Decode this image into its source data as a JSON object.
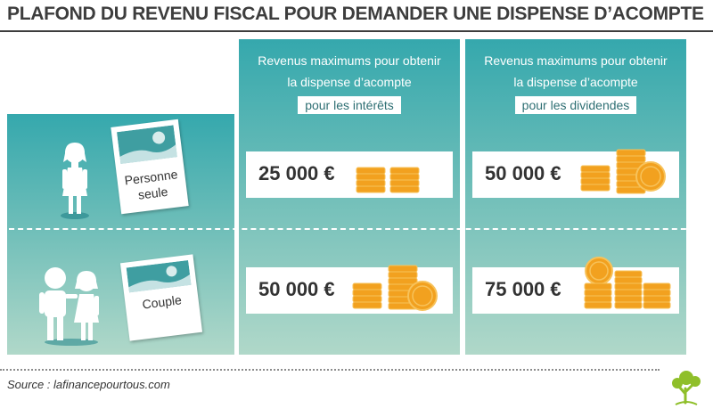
{
  "title": "PLAFOND DU REVENU FISCAL POUR DEMANDER UNE DISPENSE D’ACOMPTE",
  "columns": [
    {
      "line1": "Revenus maximums pour obtenir",
      "line2": "la dispense d’acompte",
      "tag": "pour les intérêts"
    },
    {
      "line1": "Revenus maximums pour obtenir",
      "line2": "la dispense d’acompte",
      "tag": "pour les dividendes"
    }
  ],
  "rows": [
    {
      "label_line1": "Personne",
      "label_line2": "seule",
      "interets": "25 000 €",
      "dividendes": "50 000 €"
    },
    {
      "label_line1": "Couple",
      "interets": "50 000 €",
      "dividendes": "75 000 €"
    }
  ],
  "source": "Source : lafinancepourtous.com",
  "colors": {
    "teal_top": "#35a8ad",
    "teal_bottom": "#b0d8c9",
    "coin": "#f2a11f",
    "coin_light": "#f7c25a",
    "title": "#3d3d3d",
    "logo_green": "#8fbf2a"
  },
  "icons": [
    "woman-icon",
    "couple-icon",
    "document-icon",
    "coin-stack-icon",
    "tree-logo"
  ]
}
